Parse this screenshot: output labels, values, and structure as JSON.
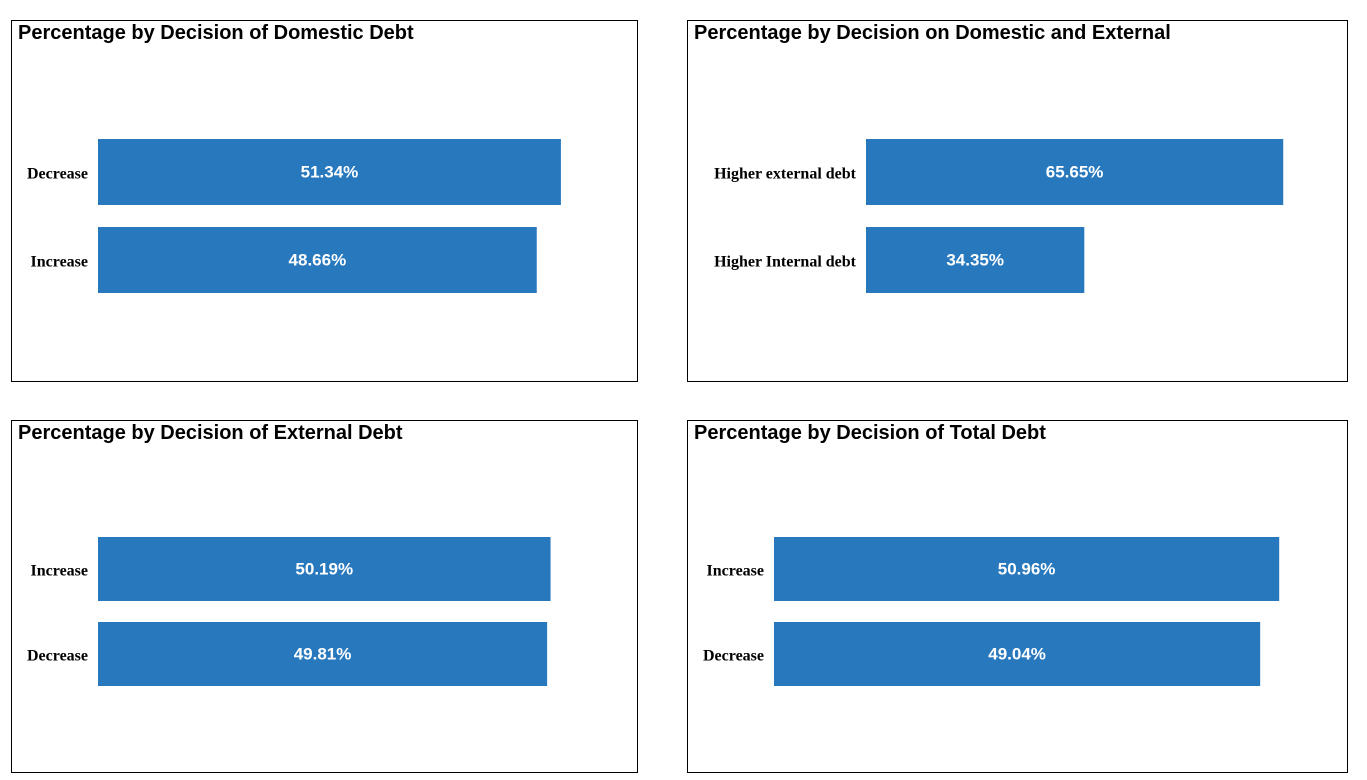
{
  "chart_data": [
    {
      "type": "bar",
      "orientation": "horizontal",
      "title": "Percentage by Decision of Domestic Debt",
      "categories": [
        "Decrease",
        "Increase"
      ],
      "values": [
        51.34,
        48.66
      ],
      "labels": [
        "51.34%",
        "48.66%"
      ],
      "xlim": [
        0,
        60
      ],
      "color": "#2878BE",
      "grid": false
    },
    {
      "type": "bar",
      "orientation": "horizontal",
      "title": "Percentage by Decision on Domestic and External",
      "categories": [
        "Higher external debt",
        "Higher Internal debt"
      ],
      "values": [
        65.65,
        34.35
      ],
      "labels": [
        "65.65%",
        "34.35%"
      ],
      "xlim": [
        0,
        76
      ],
      "color": "#2878BE",
      "grid": false
    },
    {
      "type": "bar",
      "orientation": "horizontal",
      "title": "Percentage by Decision of External Debt",
      "categories": [
        "Increase",
        "Decrease"
      ],
      "values": [
        50.19,
        49.81
      ],
      "labels": [
        "50.19%",
        "49.81%"
      ],
      "xlim": [
        0,
        60
      ],
      "color": "#2878BE",
      "grid": false
    },
    {
      "type": "bar",
      "orientation": "horizontal",
      "title": "Percentage by Decision of Total Debt",
      "categories": [
        "Increase",
        "Decrease"
      ],
      "values": [
        50.96,
        49.04
      ],
      "labels": [
        "50.96%",
        "49.04%"
      ],
      "xlim": [
        0,
        58
      ],
      "color": "#2878BE",
      "grid": false
    }
  ]
}
